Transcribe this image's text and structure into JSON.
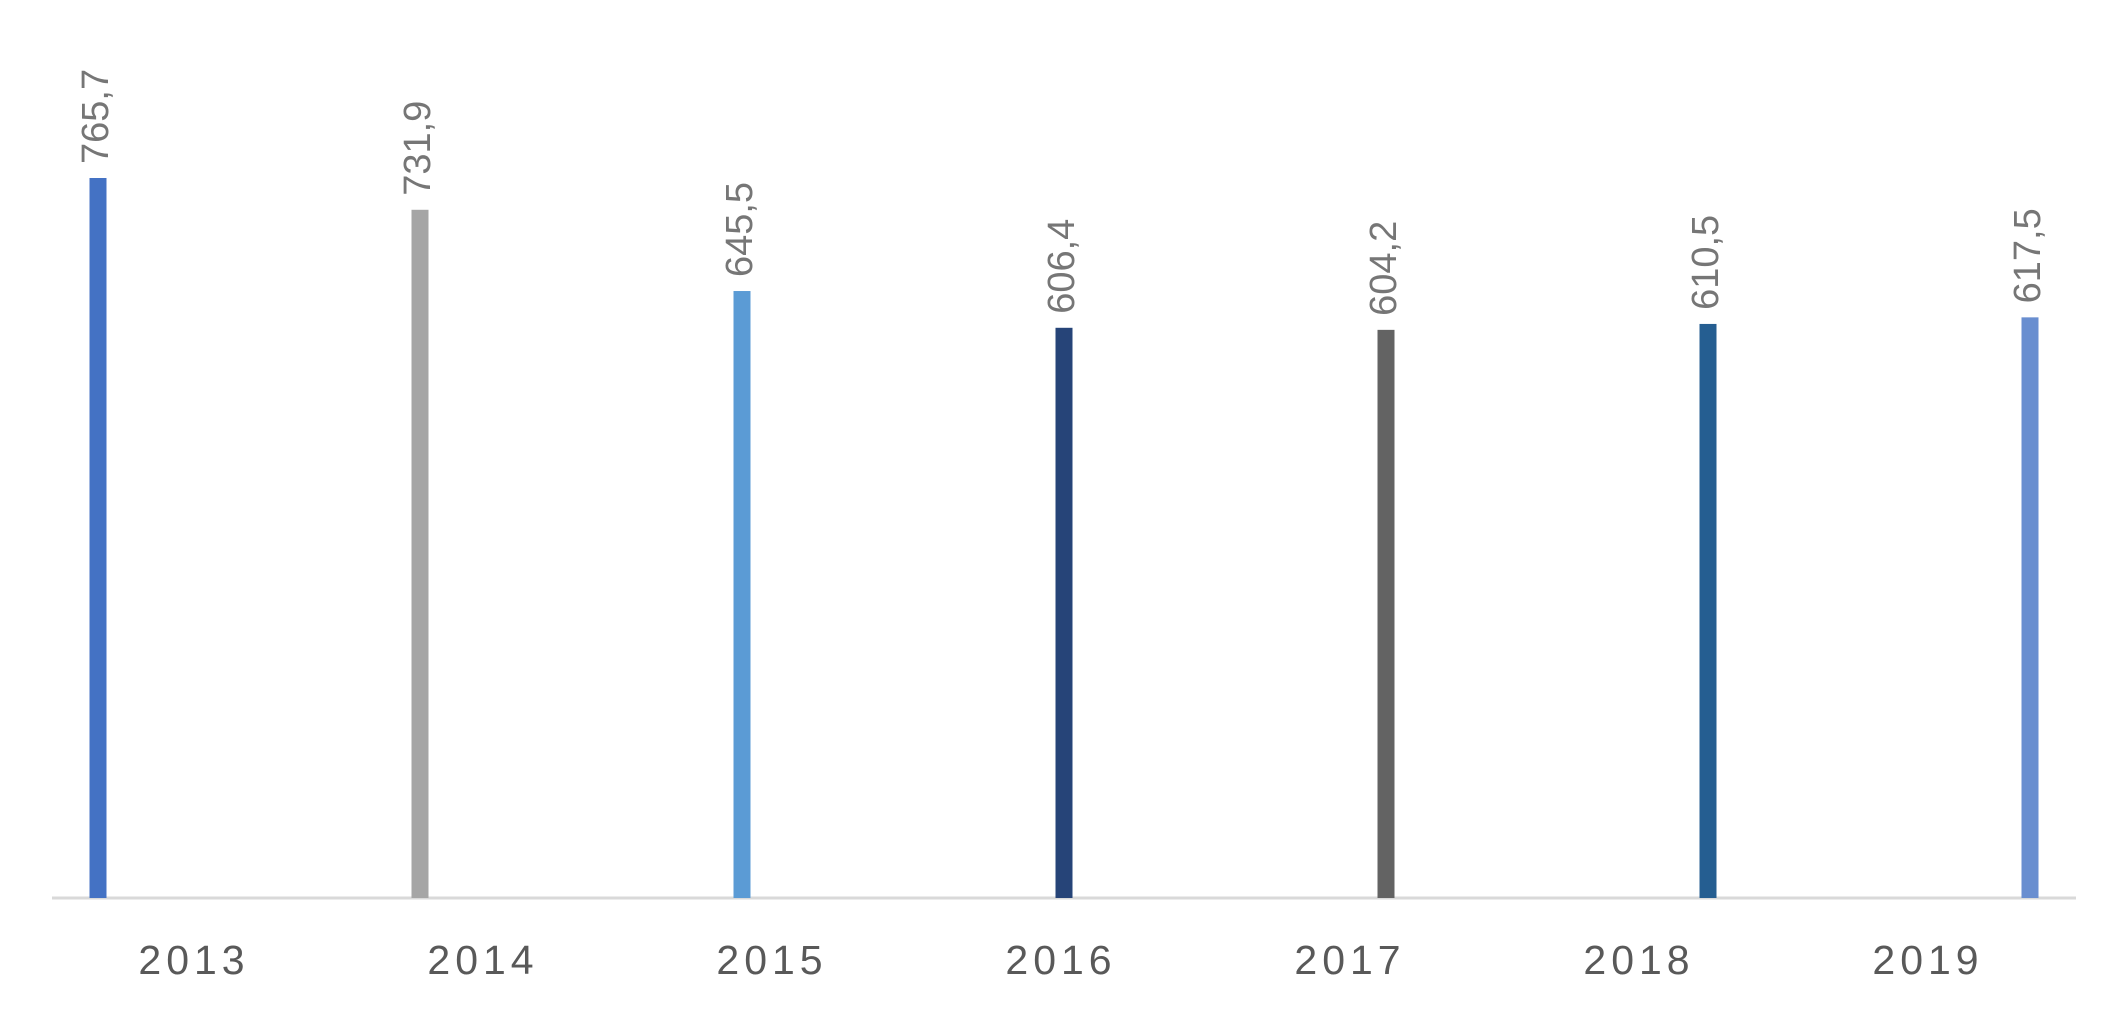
{
  "chart_data": {
    "type": "bar",
    "categories": [
      "2013",
      "2014",
      "2015",
      "2016",
      "2017",
      "2018",
      "2019"
    ],
    "values": [
      765.7,
      731.9,
      645.5,
      606.4,
      604.2,
      610.5,
      617.5
    ],
    "value_labels": [
      "765,7",
      "731,9",
      "645,5",
      "606,4",
      "604,2",
      "610,5",
      "617,5"
    ],
    "colors": [
      "#4472c4",
      "#a5a5a5",
      "#5b9bd5",
      "#264478",
      "#636363",
      "#255e91",
      "#698ed0"
    ]
  }
}
